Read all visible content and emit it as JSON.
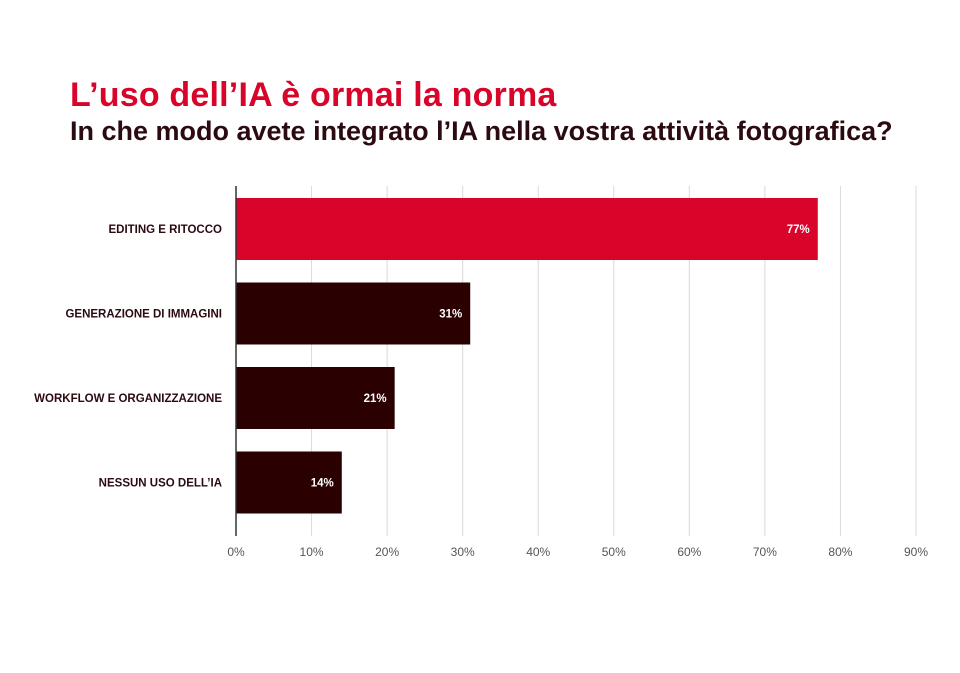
{
  "chart_data": {
    "type": "bar",
    "orientation": "horizontal",
    "title": "L’uso dell’IA è ormai la norma",
    "subtitle": "In che modo avete integrato l’IA nella vostra attività fotografica?",
    "categories": [
      "EDITING E RITOCCO",
      "GENERAZIONE DI IMMAGINI",
      "WORKFLOW E ORGANIZZAZIONE",
      "NESSUN USO DELL’IA"
    ],
    "values": [
      77,
      31,
      21,
      14
    ],
    "value_labels": [
      "77%",
      "31%",
      "21%",
      "14%"
    ],
    "xlim": [
      0,
      90
    ],
    "x_ticks": [
      0,
      10,
      20,
      30,
      40,
      50,
      60,
      70,
      80,
      90
    ],
    "x_tick_labels": [
      "0%",
      "10%",
      "20%",
      "30%",
      "40%",
      "50%",
      "60%",
      "70%",
      "80%",
      "90%"
    ],
    "grid": "vertical",
    "legend": "none",
    "colors": {
      "highlight": "#d90429",
      "default": "#2b0000",
      "grid": "#d9d9d9",
      "axis": "#333333"
    },
    "highlight_index": 0
  }
}
